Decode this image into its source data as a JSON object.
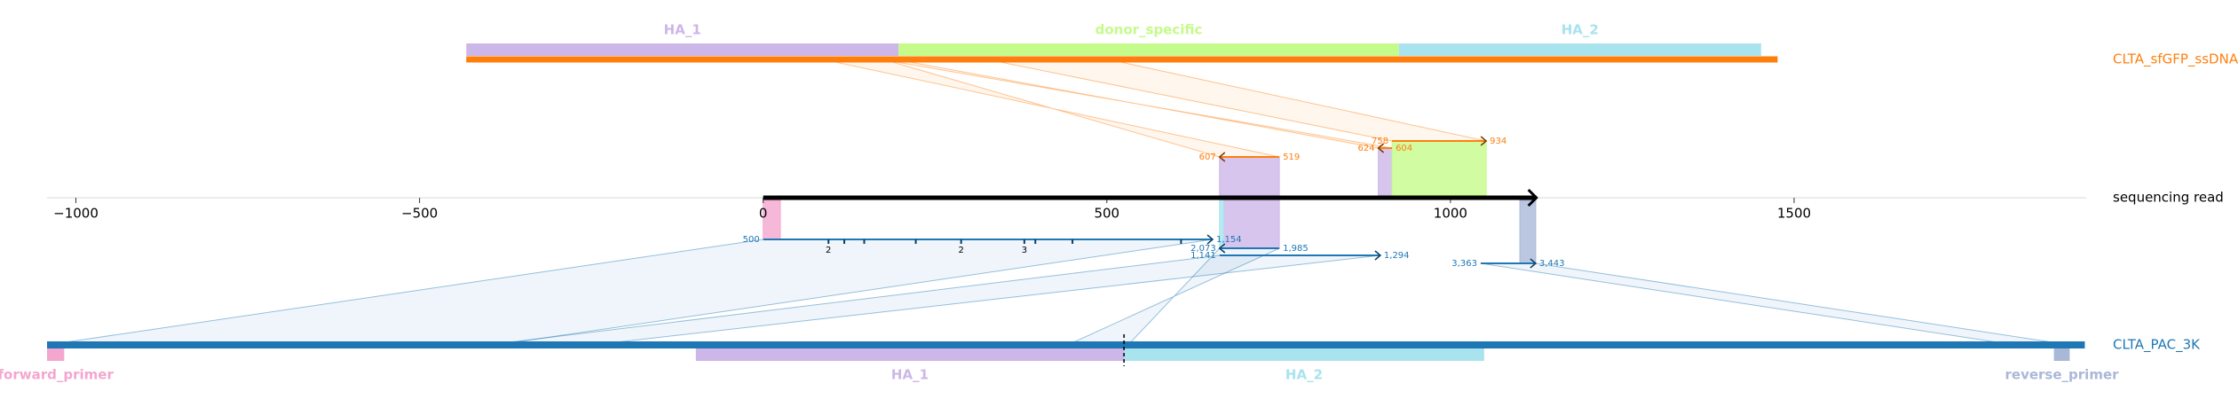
{
  "chart_data": {
    "type": "alignment",
    "xlim": [
      -1042,
      1925
    ],
    "xticks": [
      {
        "value": -1000,
        "label": "−1000"
      },
      {
        "value": -500,
        "label": "−500"
      },
      0,
      500,
      1000,
      1500
    ],
    "read": {
      "name": "sequencing read",
      "length": 1125
    },
    "references": [
      {
        "name": "CLTA_sfGFP_ssDNA",
        "color": "#ff7f0e",
        "side": "top",
        "range": [
          0,
          1908
        ],
        "features": [
          {
            "name": "HA_1",
            "start": 0,
            "end": 629,
            "color": "#cdb6e8"
          },
          {
            "name": "donor_specific",
            "start": 629,
            "end": 1357,
            "color": "#c5fb8a"
          },
          {
            "name": "HA_2",
            "start": 1357,
            "end": 1884,
            "color": "#a8e3ee"
          }
        ],
        "alignments": [
          {
            "read": [
              664,
              751
            ],
            "ref": [
              607,
              519
            ]
          },
          {
            "read": [
              895,
              915
            ],
            "ref": [
              624,
              604
            ]
          },
          {
            "read": [
              915,
              1052
            ],
            "ref": [
              758,
              934
            ]
          }
        ]
      },
      {
        "name": "CLTA_PAC_3K",
        "color": "#1f77b4",
        "side": "bottom",
        "range": [
          500,
          3465
        ],
        "cut_site": 2067,
        "features": [
          {
            "name": "forward_primer",
            "start": 500,
            "end": 525,
            "color": "#f4a6cf"
          },
          {
            "name": "HA_1",
            "start": 1444,
            "end": 2067,
            "color": "#cdb6e8"
          },
          {
            "name": "HA_2",
            "start": 2067,
            "end": 2591,
            "color": "#a8e3ee"
          },
          {
            "name": "reverse_primer",
            "start": 3420,
            "end": 3443,
            "color": "#aab8d8"
          }
        ],
        "alignments": [
          {
            "read": [
              0,
              654
            ],
            "ref": [
              500,
              1154
            ],
            "ref_labels": [
              "500",
              "1,154"
            ],
            "edits": [
              {
                "read_pos": 95,
                "size": 2
              },
              {
                "read_pos": 118,
                "size": 1
              },
              {
                "read_pos": 147,
                "size": 1
              },
              {
                "read_pos": 222,
                "size": 1
              },
              {
                "read_pos": 288,
                "size": 2
              },
              {
                "read_pos": 380,
                "size": 3
              },
              {
                "read_pos": 396,
                "size": 1
              },
              {
                "read_pos": 450,
                "size": 1
              },
              {
                "read_pos": 608,
                "size": 1
              }
            ]
          },
          {
            "read": [
              664,
              751
            ],
            "ref": [
              2073,
              1985
            ],
            "ref_labels": [
              "2,073",
              "1,985"
            ]
          },
          {
            "read": [
              664,
              898
            ],
            "ref": [
              1141,
              1294
            ],
            "ref_labels": [
              "1,141",
              "1,294"
            ]
          },
          {
            "read": [
              1044,
              1124
            ],
            "ref": [
              3363,
              3443
            ],
            "ref_labels": [
              "3,363",
              "3,443"
            ]
          }
        ]
      }
    ]
  }
}
